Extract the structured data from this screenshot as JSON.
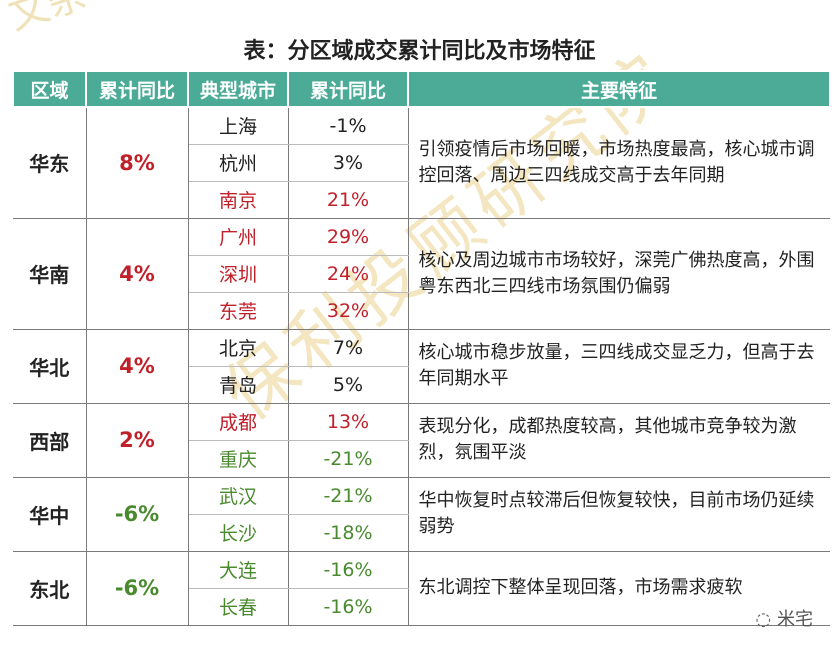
{
  "watermarks": {
    "top": "文杂",
    "middle": "保利投顾研究院"
  },
  "title": "表：分区域成交累计同比及市场特征",
  "headers": [
    "区域",
    "累计同比",
    "典型城市",
    "累计同比",
    "主要特征"
  ],
  "regions": [
    {
      "name": "华东",
      "total": "8%",
      "total_color": "red",
      "cities": [
        {
          "name": "上海",
          "value": "-1%",
          "color": "black"
        },
        {
          "name": "杭州",
          "value": "3%",
          "color": "black"
        },
        {
          "name": "南京",
          "value": "21%",
          "color": "red"
        }
      ],
      "feature": "引领疫情后市场回暖，市场热度最高，核心城市调控回落、周边三四线成交高于去年同期"
    },
    {
      "name": "华南",
      "total": "4%",
      "total_color": "red",
      "cities": [
        {
          "name": "广州",
          "value": "29%",
          "color": "red"
        },
        {
          "name": "深圳",
          "value": "24%",
          "color": "red"
        },
        {
          "name": "东莞",
          "value": "32%",
          "color": "red"
        }
      ],
      "feature": "核心及周边城市市场较好，深莞广佛热度高，外围粤东西北三四线市场氛围仍偏弱"
    },
    {
      "name": "华北",
      "total": "4%",
      "total_color": "red",
      "cities": [
        {
          "name": "北京",
          "value": "7%",
          "color": "black"
        },
        {
          "name": "青岛",
          "value": "5%",
          "color": "black"
        }
      ],
      "feature": "核心城市稳步放量，三四线成交显乏力，但高于去年同期水平"
    },
    {
      "name": "西部",
      "total": "2%",
      "total_color": "red",
      "cities": [
        {
          "name": "成都",
          "value": "13%",
          "color": "red"
        },
        {
          "name": "重庆",
          "value": "-21%",
          "color": "green"
        }
      ],
      "feature": "表现分化，成都热度较高，其他城市竞争较为激烈，氛围平淡"
    },
    {
      "name": "华中",
      "total": "-6%",
      "total_color": "green",
      "cities": [
        {
          "name": "武汉",
          "value": "-21%",
          "color": "green"
        },
        {
          "name": "长沙",
          "value": "-18%",
          "color": "green"
        }
      ],
      "feature": "华中恢复时点较滞后但恢复较快，目前市场仍延续弱势"
    },
    {
      "name": "东北",
      "total": "-6%",
      "total_color": "green",
      "cities": [
        {
          "name": "大连",
          "value": "-16%",
          "color": "green"
        },
        {
          "name": "长春",
          "value": "-16%",
          "color": "green"
        }
      ],
      "feature": "东北调控下整体呈现回落，市场需求疲软"
    }
  ],
  "logo_text": "米宅",
  "colors": {
    "header_bg": "#4bab97",
    "red": "#c0202a",
    "green": "#4a8a2e"
  }
}
